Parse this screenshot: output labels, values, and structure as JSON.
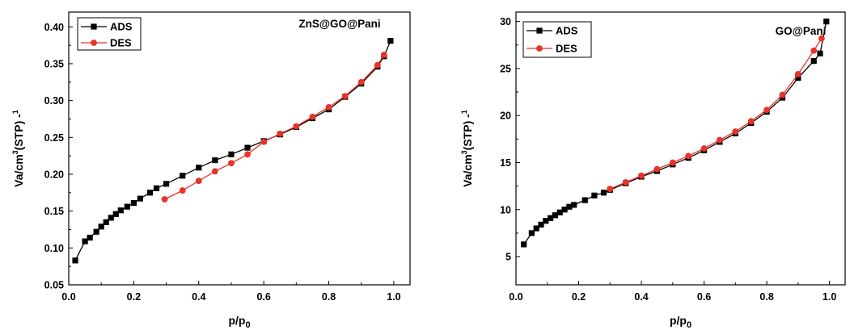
{
  "chart_data": [
    {
      "type": "line",
      "title": "ZnS@GO@Pani",
      "xlabel": "p/p0",
      "ylabel": "Va/cm3(STP) g-1",
      "xlim": [
        0.0,
        1.05
      ],
      "ylim": [
        0.05,
        0.42
      ],
      "xticks": [
        "0.0",
        "0.2",
        "0.4",
        "0.6",
        "0.8",
        "1.0"
      ],
      "yticks": [
        "0.05",
        "0.10",
        "0.15",
        "0.20",
        "0.25",
        "0.30",
        "0.35",
        "0.40"
      ],
      "legend_position": "top-left",
      "series": [
        {
          "name": "ADS",
          "color": "#000000",
          "marker": "square",
          "x": [
            0.02,
            0.05,
            0.065,
            0.085,
            0.1,
            0.115,
            0.13,
            0.145,
            0.16,
            0.18,
            0.2,
            0.22,
            0.25,
            0.27,
            0.3,
            0.35,
            0.4,
            0.45,
            0.5,
            0.55,
            0.6,
            0.65,
            0.7,
            0.75,
            0.8,
            0.85,
            0.9,
            0.95,
            0.97,
            0.99
          ],
          "y": [
            0.083,
            0.109,
            0.114,
            0.122,
            0.129,
            0.135,
            0.141,
            0.146,
            0.151,
            0.156,
            0.161,
            0.167,
            0.175,
            0.181,
            0.187,
            0.198,
            0.209,
            0.219,
            0.227,
            0.236,
            0.245,
            0.254,
            0.264,
            0.276,
            0.288,
            0.305,
            0.323,
            0.346,
            0.36,
            0.381
          ]
        },
        {
          "name": "DES",
          "color": "#e8322a",
          "marker": "circle",
          "x": [
            0.295,
            0.35,
            0.4,
            0.45,
            0.5,
            0.55,
            0.6,
            0.65,
            0.7,
            0.75,
            0.8,
            0.85,
            0.9,
            0.95,
            0.97
          ],
          "y": [
            0.166,
            0.178,
            0.191,
            0.204,
            0.215,
            0.227,
            0.244,
            0.255,
            0.265,
            0.278,
            0.291,
            0.306,
            0.325,
            0.348,
            0.362
          ]
        }
      ]
    },
    {
      "type": "line",
      "title": "GO@Pani",
      "xlabel": "p/p0",
      "ylabel": "Va/cm3(STP) g-1",
      "xlim": [
        0.0,
        1.05
      ],
      "ylim": [
        2.0,
        31.0
      ],
      "xticks": [
        "0.0",
        "0.2",
        "0.4",
        "0.6",
        "0.8",
        "1.0"
      ],
      "yticks": [
        "5",
        "10",
        "15",
        "20",
        "25",
        "30"
      ],
      "legend_position": "top-left",
      "series": [
        {
          "name": "ADS",
          "color": "#000000",
          "marker": "square",
          "x": [
            0.025,
            0.05,
            0.065,
            0.08,
            0.095,
            0.11,
            0.125,
            0.14,
            0.155,
            0.17,
            0.185,
            0.22,
            0.25,
            0.28,
            0.3,
            0.35,
            0.4,
            0.45,
            0.5,
            0.55,
            0.6,
            0.65,
            0.7,
            0.75,
            0.8,
            0.85,
            0.9,
            0.95,
            0.97,
            0.99
          ],
          "y": [
            6.3,
            7.5,
            8.0,
            8.4,
            8.8,
            9.1,
            9.4,
            9.7,
            10.0,
            10.3,
            10.5,
            11.0,
            11.5,
            11.8,
            12.1,
            12.8,
            13.5,
            14.1,
            14.8,
            15.5,
            16.3,
            17.2,
            18.1,
            19.2,
            20.4,
            21.9,
            24.0,
            25.8,
            26.6,
            30.0
          ]
        },
        {
          "name": "DES",
          "color": "#e8322a",
          "marker": "circle",
          "x": [
            0.3,
            0.35,
            0.4,
            0.45,
            0.5,
            0.55,
            0.6,
            0.65,
            0.7,
            0.75,
            0.8,
            0.85,
            0.9,
            0.95,
            0.975
          ],
          "y": [
            12.2,
            12.9,
            13.6,
            14.3,
            15.0,
            15.7,
            16.5,
            17.4,
            18.3,
            19.4,
            20.6,
            22.2,
            24.4,
            26.9,
            28.2
          ]
        }
      ]
    }
  ]
}
